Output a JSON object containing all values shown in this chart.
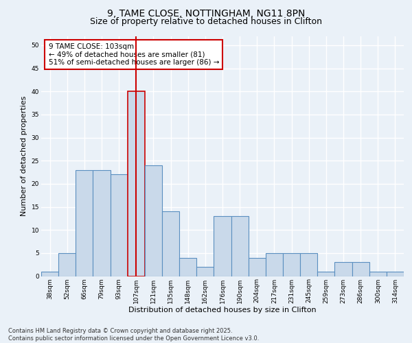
{
  "title_line1": "9, TAME CLOSE, NOTTINGHAM, NG11 8PN",
  "title_line2": "Size of property relative to detached houses in Clifton",
  "xlabel": "Distribution of detached houses by size in Clifton",
  "ylabel": "Number of detached properties",
  "categories": [
    "38sqm",
    "52sqm",
    "66sqm",
    "79sqm",
    "93sqm",
    "107sqm",
    "121sqm",
    "135sqm",
    "148sqm",
    "162sqm",
    "176sqm",
    "190sqm",
    "204sqm",
    "217sqm",
    "231sqm",
    "245sqm",
    "259sqm",
    "273sqm",
    "286sqm",
    "300sqm",
    "314sqm"
  ],
  "values": [
    1,
    5,
    23,
    23,
    22,
    40,
    24,
    14,
    4,
    2,
    13,
    13,
    4,
    5,
    5,
    5,
    1,
    3,
    3,
    1,
    1
  ],
  "bar_color": "#c9d9ea",
  "bar_edge_color": "#5a8fc0",
  "highlight_bar_index": 5,
  "highlight_line_color": "#cc0000",
  "highlight_bar_edge_color": "#cc0000",
  "annotation_text": "9 TAME CLOSE: 103sqm\n← 49% of detached houses are smaller (81)\n51% of semi-detached houses are larger (86) →",
  "annotation_box_color": "#ffffff",
  "annotation_box_edge_color": "#cc0000",
  "ylim": [
    0,
    52
  ],
  "yticks": [
    0,
    5,
    10,
    15,
    20,
    25,
    30,
    35,
    40,
    45,
    50
  ],
  "footer_text": "Contains HM Land Registry data © Crown copyright and database right 2025.\nContains public sector information licensed under the Open Government Licence v3.0.",
  "bg_color": "#eaf1f8",
  "plot_bg_color": "#eaf1f8",
  "grid_color": "#ffffff",
  "title_fontsize": 10,
  "subtitle_fontsize": 9,
  "axis_label_fontsize": 8,
  "tick_label_fontsize": 6.5,
  "footer_fontsize": 6,
  "annotation_fontsize": 7.5
}
